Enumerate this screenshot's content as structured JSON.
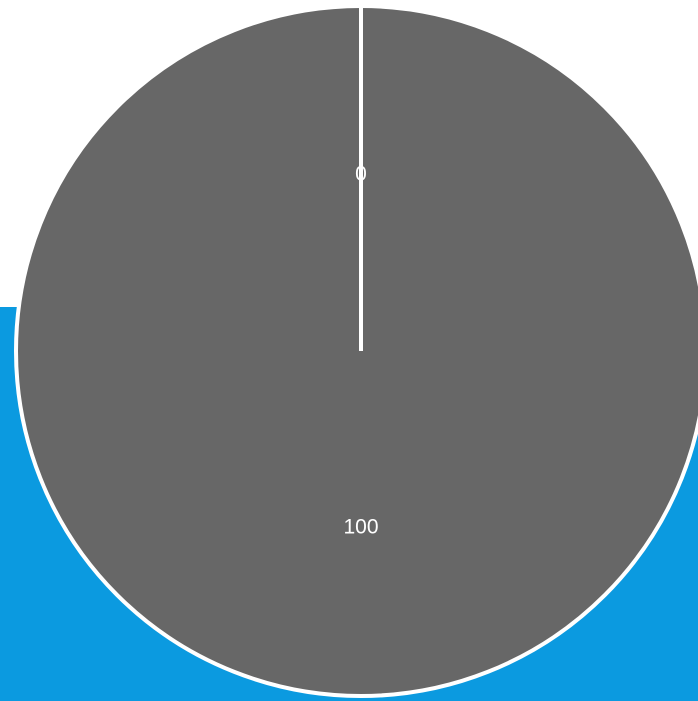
{
  "colors": {
    "background": "#ffffff",
    "backdrop": "#0b9ae0",
    "slice_fill": "#676767",
    "slice_stroke": "#ffffff"
  },
  "chart_data": {
    "type": "pie",
    "categories": [
      "",
      ""
    ],
    "values": [
      0,
      100
    ],
    "data_labels": [
      "0",
      "100"
    ],
    "title": "",
    "legend": "none"
  }
}
